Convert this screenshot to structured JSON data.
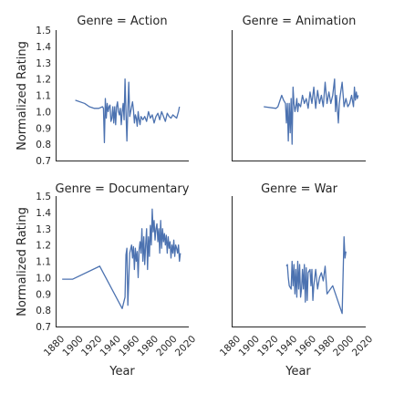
{
  "chart_data": [
    {
      "type": "line",
      "title": "Genre = Action",
      "xlabel": "",
      "ylabel": "Normalized Rating",
      "xlim": [
        1880,
        2020
      ],
      "ylim": [
        0.7,
        1.5
      ],
      "xticks": [],
      "yticks": [
        "0.7",
        "0.8",
        "0.9",
        "1.0",
        "1.1",
        "1.2",
        "1.3",
        "1.4",
        "1.5"
      ],
      "series": [
        {
          "x": [
            1900,
            1910,
            1915,
            1920,
            1925,
            1929,
            1930,
            1931,
            1932,
            1933,
            1934,
            1935,
            1936,
            1937,
            1938,
            1939,
            1940,
            1941,
            1942,
            1943,
            1944,
            1945,
            1946,
            1947,
            1948,
            1949,
            1950,
            1951,
            1952,
            1953,
            1954,
            1955,
            1956,
            1957,
            1958,
            1959,
            1960,
            1961,
            1962,
            1963,
            1964,
            1965,
            1966,
            1967,
            1968,
            1969,
            1970,
            1972,
            1974,
            1976,
            1978,
            1980,
            1982,
            1984,
            1986,
            1988,
            1990,
            1992,
            1994,
            1996,
            1998,
            2000,
            2002,
            2004,
            2006,
            2008,
            2010,
            2011
          ],
          "y": [
            1.07,
            1.05,
            1.03,
            1.02,
            1.02,
            1.03,
            1.02,
            0.81,
            1.08,
            0.96,
            1.05,
            1.0,
            1.03,
            1.04,
            0.94,
            0.96,
            1.03,
            0.93,
            1.03,
            0.92,
            1.03,
            1.06,
            1.0,
            0.98,
            1.02,
            0.92,
            1.0,
            1.05,
            0.95,
            1.2,
            1.0,
            0.82,
            1.01,
            1.18,
            0.97,
            1.0,
            1.03,
            1.06,
            1.01,
            0.93,
            0.98,
            0.96,
            0.91,
            1.0,
            0.95,
            0.92,
            0.97,
            0.95,
            0.97,
            0.94,
            1.0,
            0.96,
            0.98,
            0.93,
            0.97,
            0.99,
            0.95,
            1.0,
            0.97,
            0.94,
            0.99,
            0.97,
            0.96,
            0.98,
            0.97,
            0.96,
            1.0,
            1.03
          ]
        }
      ]
    },
    {
      "type": "line",
      "title": "Genre = Animation",
      "xlabel": "",
      "ylabel": "",
      "xlim": [
        1880,
        2020
      ],
      "ylim": [
        0.7,
        1.5
      ],
      "xticks": [],
      "yticks": [],
      "series": [
        {
          "x": [
            1913,
            1926,
            1928,
            1932,
            1934,
            1936,
            1937,
            1938,
            1939,
            1940,
            1941,
            1942,
            1943,
            1944,
            1945,
            1946,
            1947,
            1948,
            1949,
            1950,
            1952,
            1954,
            1956,
            1958,
            1960,
            1962,
            1964,
            1966,
            1968,
            1970,
            1972,
            1974,
            1976,
            1978,
            1980,
            1982,
            1984,
            1986,
            1988,
            1989,
            1990,
            1992,
            1993,
            1994,
            1996,
            1998,
            2000,
            2002,
            2004,
            2006,
            2008,
            2009,
            2010,
            2011,
            2012,
            2013
          ],
          "y": [
            1.03,
            1.02,
            1.03,
            1.1,
            1.07,
            1.05,
            0.93,
            1.05,
            0.82,
            1.05,
            0.87,
            1.08,
            0.8,
            1.15,
            1.05,
            1.0,
            1.03,
            1.08,
            1.0,
            1.05,
            1.03,
            1.1,
            1.05,
            1.08,
            1.02,
            1.12,
            1.05,
            1.15,
            1.02,
            1.13,
            1.05,
            1.1,
            1.03,
            1.18,
            1.05,
            1.12,
            1.05,
            1.1,
            1.2,
            1.0,
            1.1,
            0.93,
            1.05,
            1.1,
            1.18,
            1.03,
            1.08,
            1.03,
            1.05,
            1.1,
            1.03,
            1.15,
            1.07,
            1.12,
            1.08,
            1.1
          ]
        }
      ]
    },
    {
      "type": "line",
      "title": "Genre = Documentary",
      "xlabel": "Year",
      "ylabel": "Normalized Rating",
      "xlim": [
        1880,
        2020
      ],
      "ylim": [
        0.7,
        1.5
      ],
      "xticks": [
        "1880",
        "1900",
        "1920",
        "1940",
        "1960",
        "1980",
        "2000",
        "2020"
      ],
      "yticks": [
        "0.7",
        "0.8",
        "0.9",
        "1.0",
        "1.1",
        "1.2",
        "1.3",
        "1.4",
        "1.5"
      ],
      "series": [
        {
          "x": [
            1886,
            1897,
            1926,
            1950,
            1953,
            1954,
            1955,
            1956,
            1958,
            1960,
            1961,
            1962,
            1963,
            1964,
            1965,
            1966,
            1967,
            1968,
            1969,
            1970,
            1971,
            1972,
            1973,
            1974,
            1975,
            1976,
            1977,
            1978,
            1979,
            1980,
            1981,
            1982,
            1983,
            1984,
            1985,
            1986,
            1987,
            1988,
            1989,
            1990,
            1991,
            1992,
            1993,
            1994,
            1995,
            1996,
            1997,
            1998,
            1999,
            2000,
            2001,
            2002,
            2003,
            2004,
            2005,
            2006,
            2007,
            2008,
            2009,
            2010,
            2011,
            2012
          ],
          "y": [
            0.99,
            0.99,
            1.07,
            0.81,
            0.88,
            1.14,
            1.18,
            0.83,
            1.15,
            1.2,
            1.12,
            1.19,
            1.05,
            1.18,
            1.1,
            1.16,
            1.0,
            1.17,
            1.22,
            1.15,
            1.3,
            1.1,
            1.25,
            1.08,
            1.2,
            1.3,
            1.05,
            1.25,
            1.13,
            1.32,
            1.2,
            1.42,
            1.28,
            1.35,
            1.23,
            1.3,
            1.33,
            1.22,
            1.3,
            1.15,
            1.35,
            1.18,
            1.3,
            1.22,
            1.27,
            1.2,
            1.26,
            1.15,
            1.25,
            1.18,
            1.22,
            1.12,
            1.2,
            1.15,
            1.23,
            1.13,
            1.2,
            1.18,
            1.15,
            1.2,
            1.1,
            1.15
          ]
        }
      ]
    },
    {
      "type": "line",
      "title": "Genre = War",
      "xlabel": "Year",
      "ylabel": "",
      "xlim": [
        1880,
        2020
      ],
      "ylim": [
        0.7,
        1.5
      ],
      "xticks": [
        "1880",
        "1900",
        "1920",
        "1940",
        "1960",
        "1980",
        "2000",
        "2020"
      ],
      "yticks": [],
      "series": [
        {
          "x": [
            1937,
            1938,
            1939,
            1940,
            1942,
            1943,
            1944,
            1945,
            1946,
            1947,
            1948,
            1949,
            1950,
            1951,
            1952,
            1953,
            1954,
            1955,
            1956,
            1957,
            1958,
            1959,
            1960,
            1962,
            1963,
            1964,
            1965,
            1966,
            1968,
            1970,
            1972,
            1974,
            1976,
            1978,
            1980,
            1986,
            1996,
            1998,
            1999,
            2000
          ],
          "y": [
            1.07,
            1.08,
            1.0,
            0.95,
            0.93,
            1.1,
            0.95,
            1.08,
            0.9,
            1.05,
            0.88,
            1.1,
            0.93,
            1.08,
            0.88,
            0.93,
            1.05,
            0.93,
            1.08,
            0.85,
            1.06,
            0.86,
            1.03,
            1.05,
            0.95,
            1.05,
            0.86,
            0.95,
            1.05,
            0.93,
            1.0,
            1.03,
            0.98,
            1.07,
            0.9,
            0.95,
            0.78,
            1.25,
            1.12,
            1.16
          ]
        }
      ]
    }
  ]
}
